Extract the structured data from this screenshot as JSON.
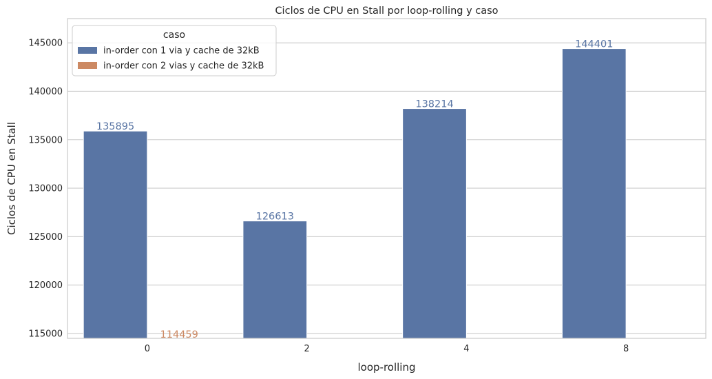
{
  "chart_data": {
    "type": "bar",
    "title": "Ciclos de CPU en Stall por loop-rolling y caso",
    "xlabel": "loop-rolling",
    "ylabel": "Ciclos de CPU en Stall",
    "categories": [
      "0",
      "2",
      "4",
      "8"
    ],
    "ylim": [
      114500,
      147500
    ],
    "yticks": [
      115000,
      120000,
      125000,
      130000,
      135000,
      140000,
      145000
    ],
    "grid": true,
    "legend": {
      "title": "caso",
      "placement": "top-left"
    },
    "series": [
      {
        "name": "in-order con 1 via y cache de 32kB",
        "color": "#5975a4",
        "values": [
          135895,
          126613,
          138214,
          144401
        ]
      },
      {
        "name": "in-order con 2 vias y cache de 32kB",
        "color": "#cc8963",
        "values": [
          114459,
          null,
          null,
          null
        ]
      }
    ]
  }
}
